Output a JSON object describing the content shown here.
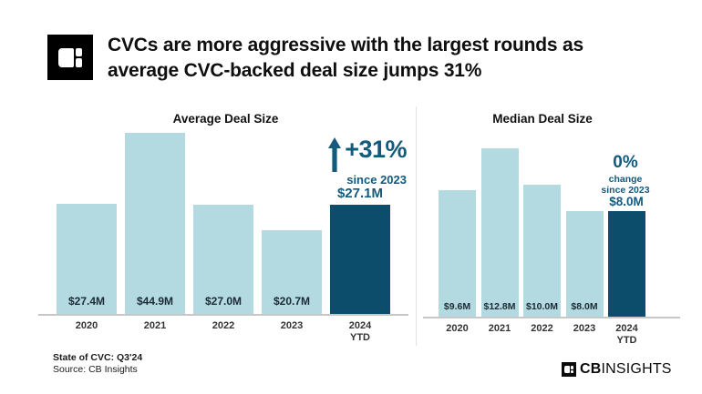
{
  "header": {
    "title_line1": "CVCs are more aggressive with the largest rounds as",
    "title_line2": "average CVC-backed deal size jumps 31%"
  },
  "annotations": {
    "average": {
      "pct": "+31%",
      "sub": "since 2023",
      "value_label": "$27.1M"
    },
    "median": {
      "pct": "0%",
      "sub1": "change",
      "sub2": "since 2023",
      "value_label": "$8.0M"
    }
  },
  "icons": {
    "up_arrow": "↑",
    "cb_mark": "cb-insights-window-mark"
  },
  "colors": {
    "bar_light": "#b3d9e1",
    "bar_dark": "#0d4d6c",
    "accent_text": "#135a7d",
    "title_text": "#0f0f0f",
    "axis_line": "#c7c7c7",
    "divider": "#e2e2e2"
  },
  "chart_data": [
    {
      "type": "bar",
      "title": "Average Deal Size",
      "categories": [
        "2020",
        "2021",
        "2022",
        "2023",
        "2024 YTD"
      ],
      "values": [
        27.4,
        44.9,
        27.0,
        20.7,
        27.1
      ],
      "bar_labels": [
        "$27.4M",
        "$44.9M",
        "$27.0M",
        "$20.7M",
        "$27.1M"
      ],
      "unit": "USD millions",
      "highlight_index": 4,
      "annotation": "+31% since 2023",
      "ylim": [
        0,
        45
      ],
      "grid": false,
      "legend": false
    },
    {
      "type": "bar",
      "title": "Median Deal Size",
      "categories": [
        "2020",
        "2021",
        "2022",
        "2023",
        "2024 YTD"
      ],
      "values": [
        9.6,
        12.8,
        10.0,
        8.0,
        8.0
      ],
      "bar_labels": [
        "$9.6M",
        "$12.8M",
        "$10.0M",
        "$8.0M",
        "$8.0M"
      ],
      "unit": "USD millions",
      "highlight_index": 4,
      "annotation": "0% change since 2023",
      "ylim": [
        0,
        13
      ],
      "grid": false,
      "legend": false
    }
  ],
  "footer": {
    "note_line1": "State of CVC: Q3'24",
    "note_line2": "Source: CB Insights",
    "brand_cb": "CB",
    "brand_insights": "INSIGHTS"
  }
}
